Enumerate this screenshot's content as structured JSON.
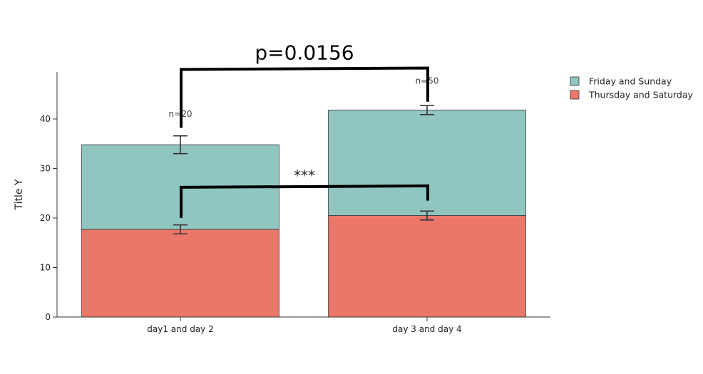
{
  "chart_data": {
    "type": "bar",
    "barmode": "stack",
    "categories": [
      "day1 and day 2",
      "day 3 and day 4"
    ],
    "ylabel": "Title Y",
    "xlabel": "",
    "ylim": [
      0,
      49.5
    ],
    "yticks": [
      0,
      10,
      20,
      30,
      40
    ],
    "series": [
      {
        "name": "Thursday and Saturday",
        "values": [
          17.7,
          20.5
        ],
        "error": [
          0.9,
          0.9
        ],
        "color": "#eb776a"
      },
      {
        "name": "Friday and Sunday",
        "values": [
          17.1,
          21.3
        ],
        "error": [
          1.8,
          0.9
        ],
        "color": "#90c5c0"
      }
    ],
    "annotations": [
      {
        "text": "n=20",
        "category": 0,
        "y": 41.0
      },
      {
        "text": "n=50",
        "category": 1,
        "y": 47.7
      }
    ],
    "significance": [
      {
        "text": "p=0.0156",
        "y_left": 38.2,
        "y_right": 43.5,
        "y_top": 50,
        "style": "big"
      },
      {
        "text": "***",
        "y_left": 20.0,
        "y_right": 23.5,
        "y_top": 26.2,
        "style": "stars",
        "label_y": 29.3
      }
    ],
    "legend_position": "top-right",
    "grid": false
  }
}
